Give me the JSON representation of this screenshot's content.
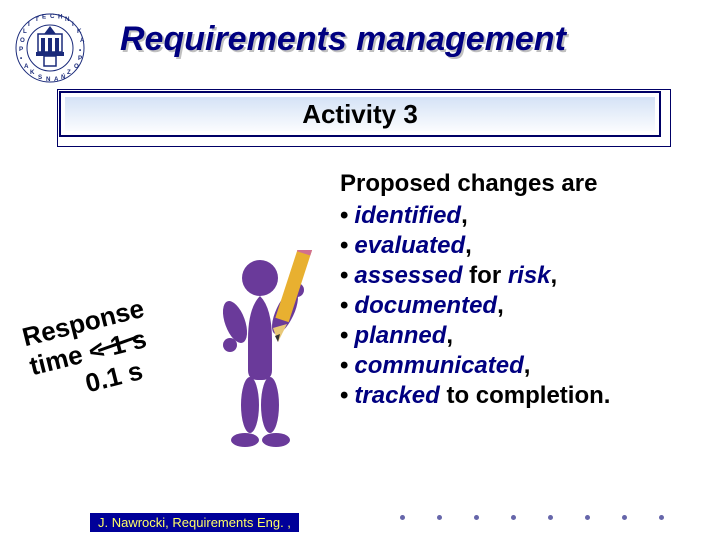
{
  "title": "Requirements management",
  "subtitle": "Activity 3",
  "content_heading": "Proposed changes are",
  "items": [
    {
      "text": "identified",
      "tail": "",
      "punct": ","
    },
    {
      "text": "evaluated",
      "tail": "",
      "punct": ","
    },
    {
      "text": "assessed",
      "tail": " for ",
      "tail2": "risk",
      "punct": ","
    },
    {
      "text": "documented",
      "tail": "",
      "punct": ","
    },
    {
      "text": "planned",
      "tail": "",
      "punct": ","
    },
    {
      "text": "communicated",
      "tail": "",
      "punct": ","
    },
    {
      "text": "tracked",
      "tail": " to completion",
      "punct": "."
    }
  ],
  "note_line1": "Response",
  "note_line2": "time < 1 s",
  "note_line3": "0.1 s",
  "footer": "J. Nawrocki, Requirements Eng. ,",
  "colors": {
    "title_color": "#000080",
    "item_color": "#000080",
    "footer_bg": "#000099",
    "footer_fg": "#ffff66",
    "logo_blue": "#1a2a7a",
    "figure_color": "#6a3a9a"
  },
  "logo_letters": "POLITECHNIKA • POZNAŃSKA •"
}
